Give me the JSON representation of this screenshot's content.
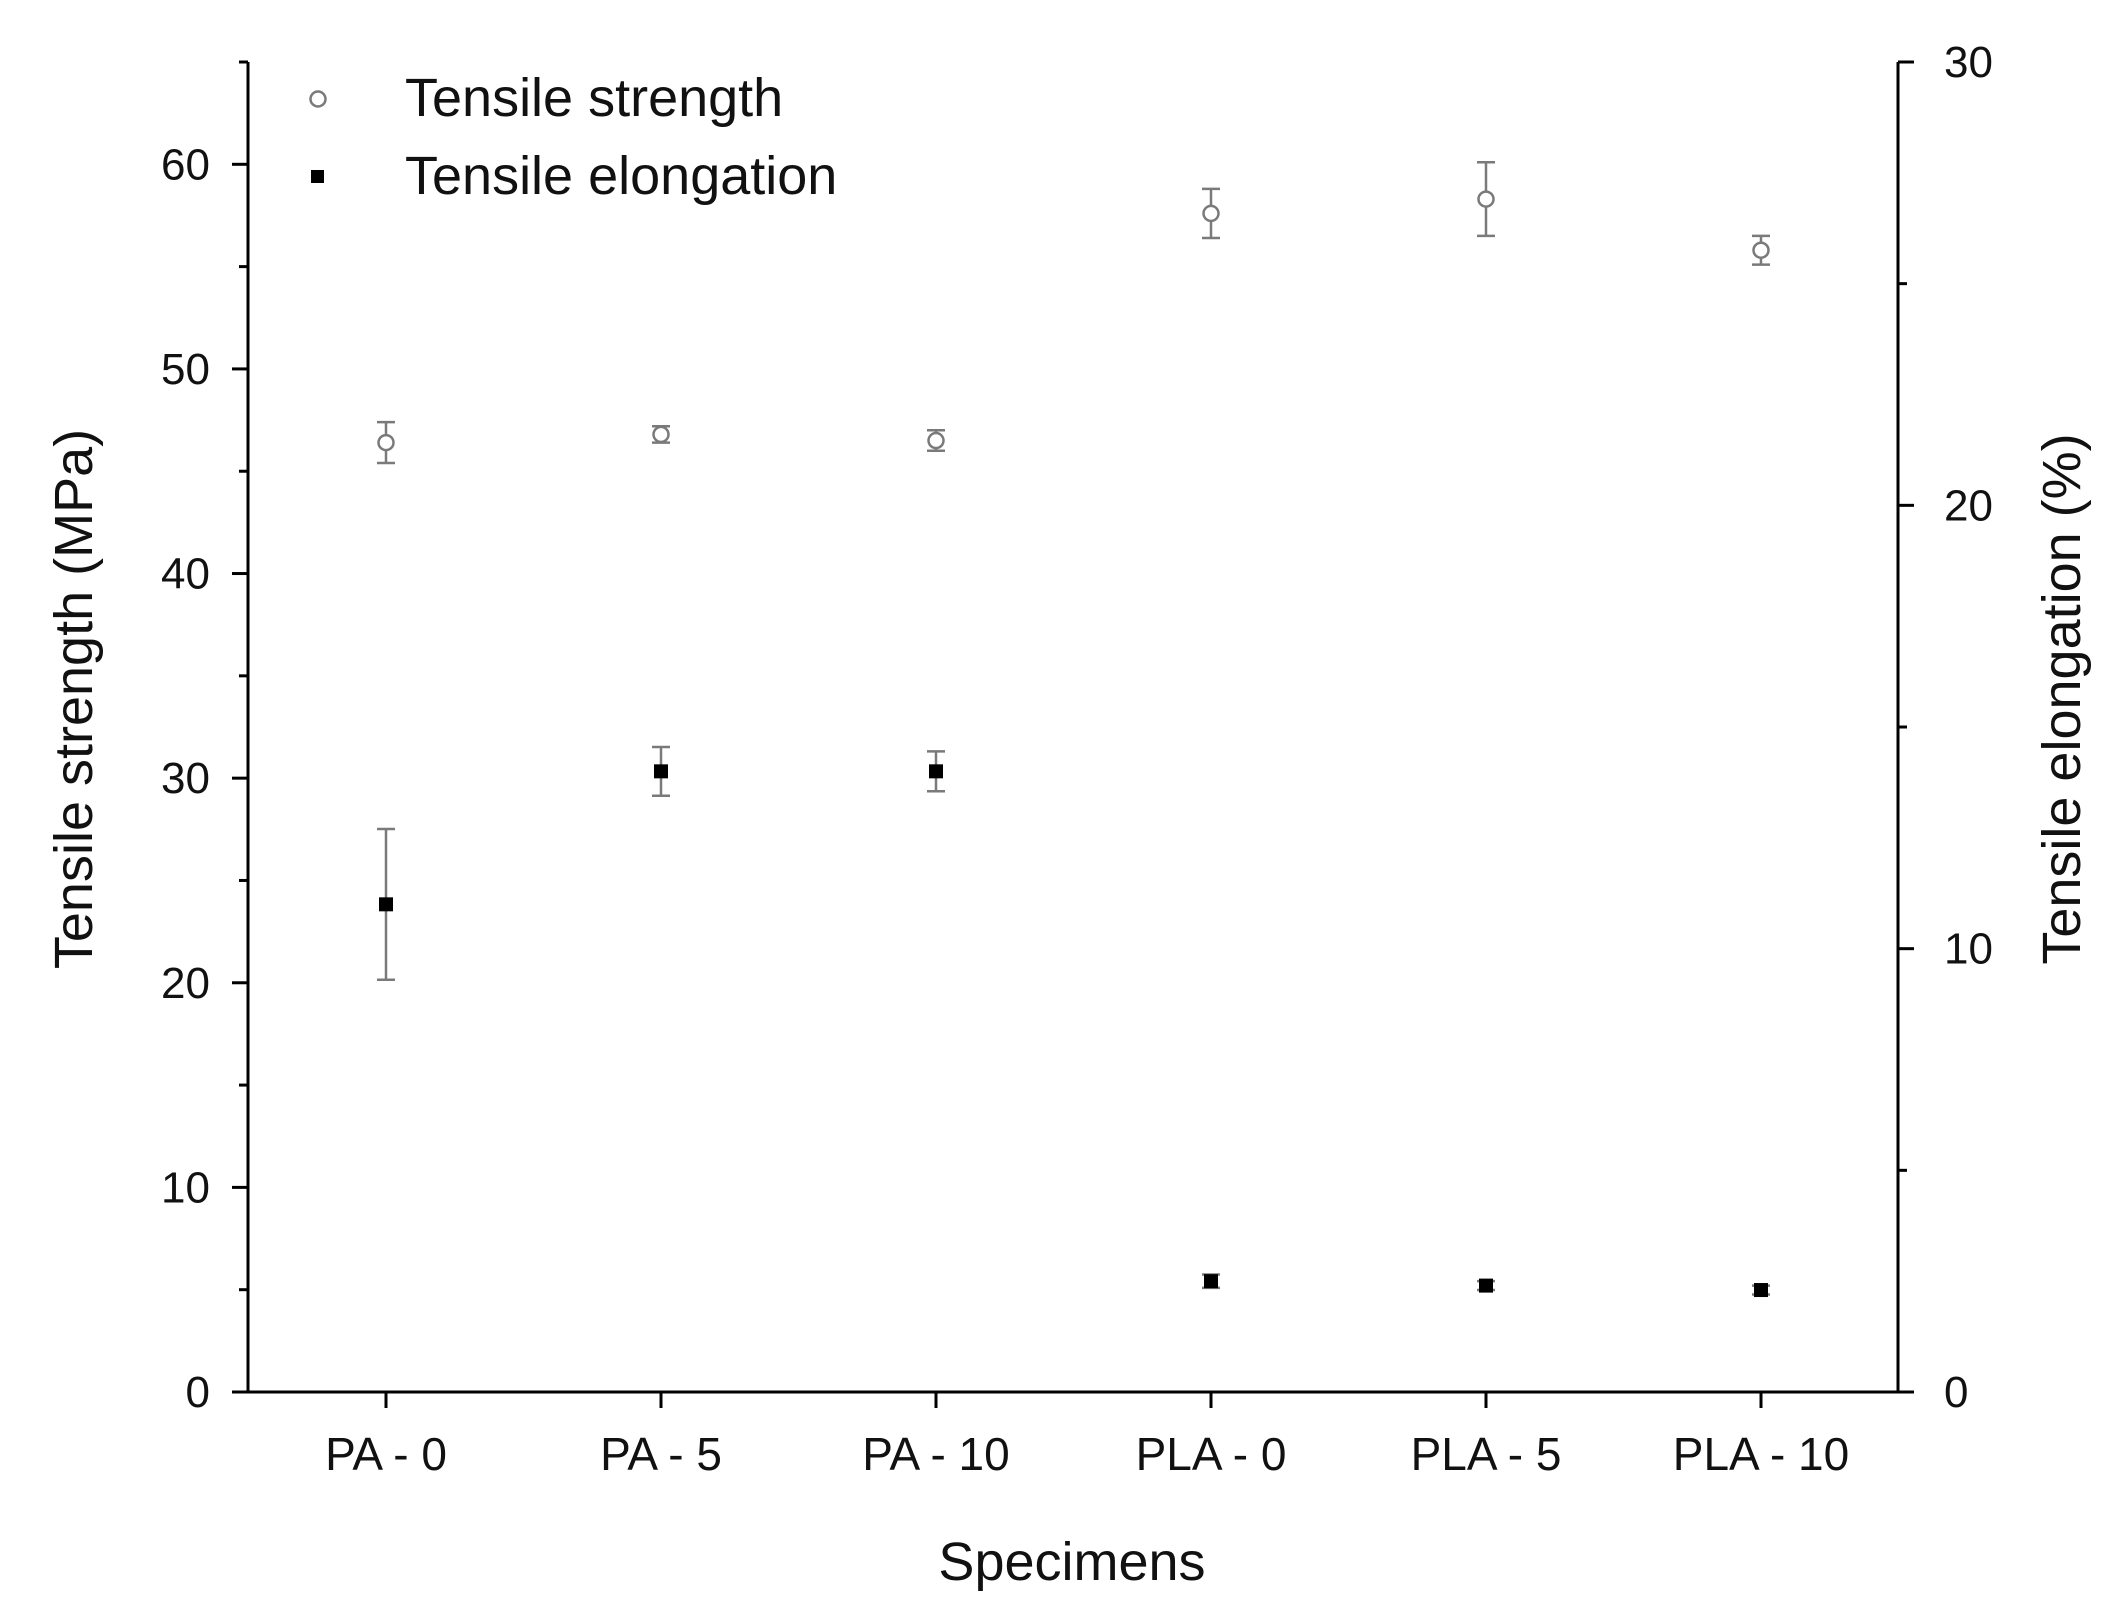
{
  "chart_data": {
    "type": "scatter",
    "categories": [
      "PA - 0",
      "PA - 5",
      "PA - 10",
      "PLA - 0",
      "PLA - 5",
      "PLA - 10"
    ],
    "xlabel": "Specimens",
    "ylabel_left": "Tensile strength (MPa)",
    "ylabel_right": "Tensile elongation (%)",
    "ylim_left": [
      0,
      65
    ],
    "ylim_right": [
      0,
      30
    ],
    "yticks_left": [
      0,
      10,
      20,
      30,
      40,
      50,
      60
    ],
    "yticks_right": [
      0,
      10,
      20,
      30
    ],
    "legend_position": "top-left",
    "series": [
      {
        "name": "Tensile strength",
        "axis": "left",
        "marker": "open-circle",
        "values": [
          46.4,
          46.8,
          46.5,
          57.6,
          58.3,
          55.8
        ],
        "errors": [
          1.0,
          0.4,
          0.5,
          1.2,
          1.8,
          0.7
        ]
      },
      {
        "name": "Tensile elongation",
        "axis": "right",
        "marker": "filled-square",
        "values": [
          11.0,
          14.0,
          14.0,
          2.5,
          2.4,
          2.3
        ],
        "errors": [
          1.7,
          0.55,
          0.45,
          0.15,
          0.1,
          0.1
        ]
      }
    ]
  }
}
